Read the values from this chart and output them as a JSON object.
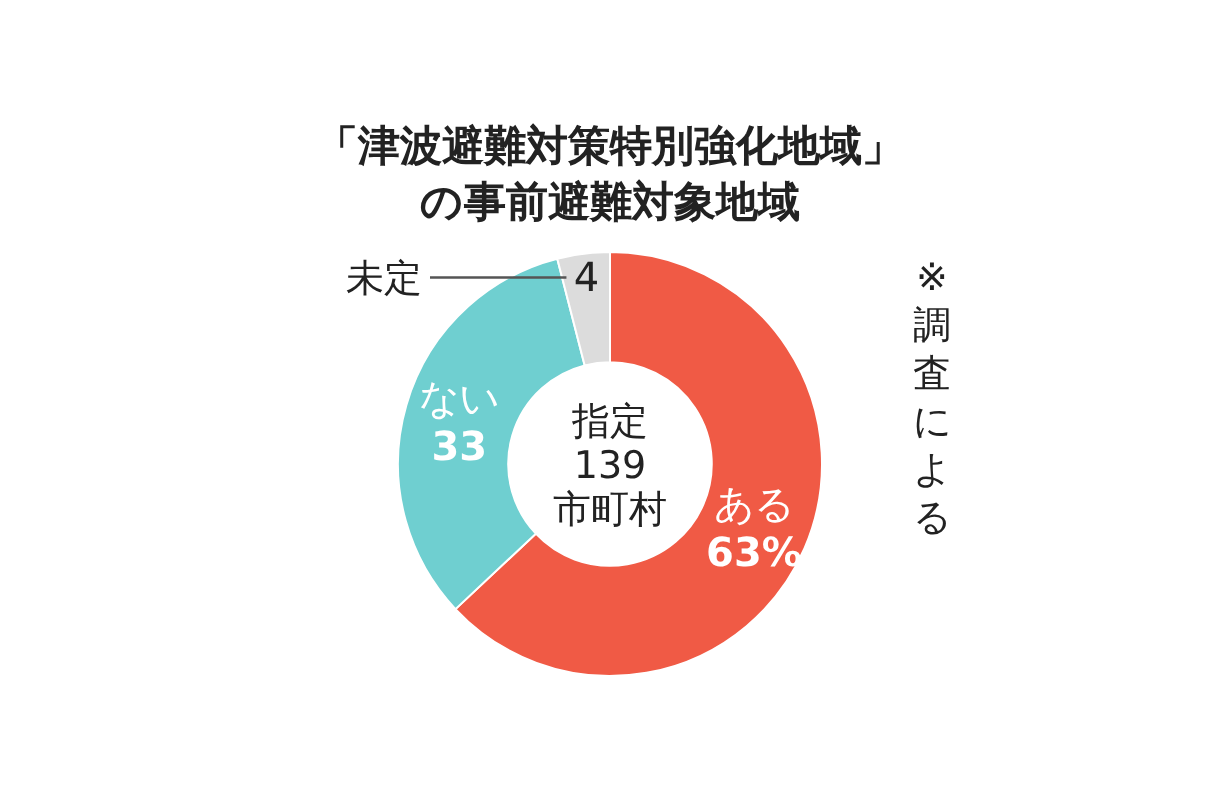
{
  "chart_data": {
    "type": "donut",
    "title": "「津波避難対策特別強化地域」",
    "subtitle": "の事前避難対象地域",
    "categories": [
      "ある",
      "ない",
      "未定"
    ],
    "values": [
      63,
      33,
      4
    ],
    "colors": [
      "#f05a45",
      "#6fcfd0",
      "#dcdcdc"
    ],
    "value_labels": [
      "63%",
      "33",
      "4"
    ],
    "annotations": [
      "指定\n139\n市町村",
      "※調査による"
    ]
  }
}
